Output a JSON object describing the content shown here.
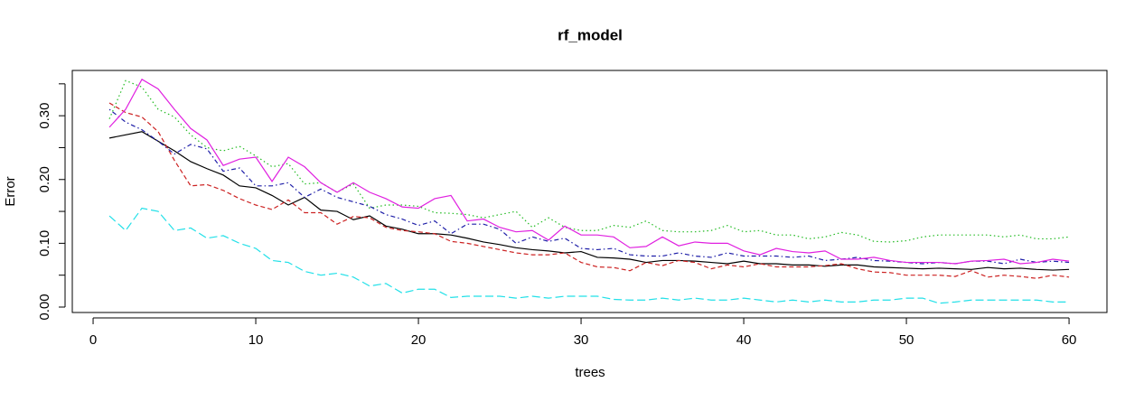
{
  "chart_data": {
    "type": "line",
    "title": "rf_model",
    "x_label": "trees",
    "y_label": "Error",
    "x": [
      1,
      2,
      3,
      4,
      5,
      6,
      7,
      8,
      9,
      10,
      11,
      12,
      13,
      14,
      15,
      16,
      17,
      18,
      19,
      20,
      21,
      22,
      23,
      24,
      25,
      26,
      27,
      28,
      29,
      30,
      31,
      32,
      33,
      34,
      35,
      36,
      37,
      38,
      39,
      40,
      41,
      42,
      43,
      44,
      45,
      46,
      47,
      48,
      49,
      50,
      51,
      52,
      53,
      54,
      55,
      56,
      57,
      58,
      59,
      60
    ],
    "series": [
      {
        "color": "#000000",
        "line_style": "solid",
        "values": [
          0.265,
          0.27,
          0.275,
          0.26,
          0.245,
          0.228,
          0.217,
          0.207,
          0.19,
          0.187,
          0.175,
          0.16,
          0.172,
          0.152,
          0.15,
          0.137,
          0.143,
          0.127,
          0.122,
          0.115,
          0.115,
          0.113,
          0.108,
          0.102,
          0.098,
          0.093,
          0.09,
          0.088,
          0.085,
          0.087,
          0.078,
          0.077,
          0.075,
          0.07,
          0.073,
          0.073,
          0.072,
          0.07,
          0.068,
          0.072,
          0.068,
          0.068,
          0.066,
          0.066,
          0.064,
          0.066,
          0.066,
          0.063,
          0.062,
          0.061,
          0.06,
          0.061,
          0.06,
          0.059,
          0.062,
          0.06,
          0.061,
          0.059,
          0.058,
          0.059
        ]
      },
      {
        "color": "#cc2222",
        "line_style": "dashed",
        "values": [
          0.32,
          0.305,
          0.298,
          0.275,
          0.23,
          0.19,
          0.192,
          0.183,
          0.17,
          0.16,
          0.153,
          0.168,
          0.148,
          0.148,
          0.13,
          0.142,
          0.14,
          0.125,
          0.12,
          0.118,
          0.115,
          0.103,
          0.1,
          0.095,
          0.09,
          0.085,
          0.082,
          0.082,
          0.085,
          0.07,
          0.063,
          0.062,
          0.057,
          0.07,
          0.065,
          0.073,
          0.07,
          0.06,
          0.066,
          0.063,
          0.068,
          0.063,
          0.063,
          0.063,
          0.065,
          0.068,
          0.06,
          0.055,
          0.054,
          0.05,
          0.05,
          0.05,
          0.048,
          0.057,
          0.047,
          0.05,
          0.048,
          0.045,
          0.05,
          0.047
        ]
      },
      {
        "color": "#22bb22",
        "line_style": "dotted",
        "values": [
          0.295,
          0.355,
          0.345,
          0.31,
          0.298,
          0.27,
          0.25,
          0.245,
          0.252,
          0.237,
          0.22,
          0.225,
          0.193,
          0.195,
          0.18,
          0.193,
          0.155,
          0.16,
          0.16,
          0.158,
          0.148,
          0.147,
          0.145,
          0.14,
          0.145,
          0.15,
          0.125,
          0.14,
          0.125,
          0.12,
          0.12,
          0.128,
          0.125,
          0.135,
          0.12,
          0.118,
          0.118,
          0.12,
          0.128,
          0.118,
          0.12,
          0.113,
          0.113,
          0.107,
          0.11,
          0.117,
          0.113,
          0.103,
          0.102,
          0.104,
          0.11,
          0.113,
          0.113,
          0.113,
          0.113,
          0.11,
          0.113,
          0.107,
          0.107,
          0.11
        ]
      },
      {
        "color": "#1f1fa8",
        "line_style": "dotdash",
        "values": [
          0.31,
          0.29,
          0.278,
          0.26,
          0.24,
          0.255,
          0.248,
          0.213,
          0.218,
          0.19,
          0.19,
          0.195,
          0.172,
          0.185,
          0.172,
          0.165,
          0.158,
          0.145,
          0.138,
          0.128,
          0.135,
          0.115,
          0.13,
          0.13,
          0.122,
          0.1,
          0.11,
          0.103,
          0.108,
          0.092,
          0.09,
          0.092,
          0.082,
          0.08,
          0.08,
          0.085,
          0.08,
          0.078,
          0.085,
          0.08,
          0.08,
          0.08,
          0.078,
          0.08,
          0.073,
          0.075,
          0.078,
          0.073,
          0.072,
          0.07,
          0.068,
          0.07,
          0.068,
          0.072,
          0.072,
          0.068,
          0.075,
          0.07,
          0.072,
          0.07
        ]
      },
      {
        "color": "#22e0e8",
        "line_style": "longdash",
        "values": [
          0.143,
          0.12,
          0.155,
          0.15,
          0.12,
          0.124,
          0.108,
          0.112,
          0.1,
          0.092,
          0.073,
          0.07,
          0.056,
          0.05,
          0.053,
          0.047,
          0.033,
          0.037,
          0.022,
          0.028,
          0.028,
          0.015,
          0.017,
          0.017,
          0.017,
          0.014,
          0.017,
          0.014,
          0.017,
          0.017,
          0.017,
          0.012,
          0.011,
          0.011,
          0.014,
          0.011,
          0.014,
          0.011,
          0.011,
          0.014,
          0.011,
          0.008,
          0.011,
          0.008,
          0.011,
          0.008,
          0.008,
          0.011,
          0.011,
          0.014,
          0.014,
          0.006,
          0.008,
          0.011,
          0.011,
          0.011,
          0.011,
          0.011,
          0.008,
          0.008
        ]
      },
      {
        "color": "#e020e0",
        "line_style": "solid",
        "values": [
          0.282,
          0.31,
          0.357,
          0.342,
          0.31,
          0.28,
          0.262,
          0.222,
          0.232,
          0.235,
          0.197,
          0.235,
          0.22,
          0.195,
          0.18,
          0.195,
          0.18,
          0.17,
          0.157,
          0.155,
          0.17,
          0.175,
          0.135,
          0.138,
          0.125,
          0.118,
          0.12,
          0.105,
          0.127,
          0.113,
          0.113,
          0.11,
          0.093,
          0.095,
          0.11,
          0.096,
          0.102,
          0.1,
          0.1,
          0.088,
          0.082,
          0.092,
          0.087,
          0.085,
          0.088,
          0.075,
          0.075,
          0.078,
          0.073,
          0.07,
          0.07,
          0.07,
          0.068,
          0.072,
          0.073,
          0.075,
          0.068,
          0.07,
          0.075,
          0.072
        ]
      }
    ],
    "xlim": [
      -1.28,
      62.33
    ],
    "ylim": [
      -0.0085,
      0.371
    ],
    "xticks": [
      0,
      10,
      20,
      30,
      40,
      50,
      60
    ],
    "yticks": [
      {
        "value": 0,
        "label": "0.00"
      },
      {
        "value": 0.05,
        "label": null
      },
      {
        "value": 0.1,
        "label": "0.10"
      },
      {
        "value": 0.15,
        "label": null
      },
      {
        "value": 0.2,
        "label": "0.20"
      },
      {
        "value": 0.25,
        "label": null
      },
      {
        "value": 0.3,
        "label": "0.30"
      },
      {
        "value": 0.35,
        "label": null
      }
    ]
  }
}
